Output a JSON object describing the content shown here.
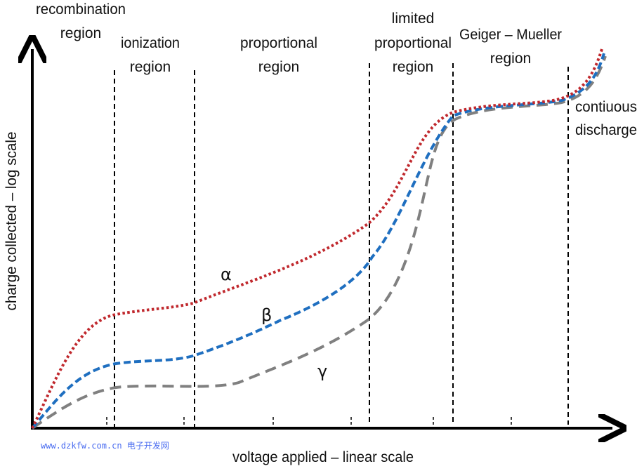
{
  "regions": [
    {
      "lines": [
        "recombination",
        "region"
      ]
    },
    {
      "lines": [
        "ionization",
        "region"
      ]
    },
    {
      "lines": [
        "proportional",
        "region"
      ]
    },
    {
      "lines": [
        "limited",
        "proportional",
        "region"
      ]
    },
    {
      "lines": [
        "Geiger – Mueller",
        "region"
      ]
    },
    {
      "lines": [
        "contiuous",
        "discharge"
      ]
    }
  ],
  "axes": {
    "x_label": "voltage applied – linear scale",
    "y_label": "charge collected – log scale"
  },
  "curves": [
    {
      "label": "α",
      "style": "dotted",
      "color": "#c0282d"
    },
    {
      "label": "β",
      "style": "dashed",
      "color": "#1f6fc0"
    },
    {
      "label": "γ",
      "style": "long-dashed",
      "color": "#808080"
    }
  ],
  "watermark": "www.dzkfw.com.cn 电子开发网"
}
